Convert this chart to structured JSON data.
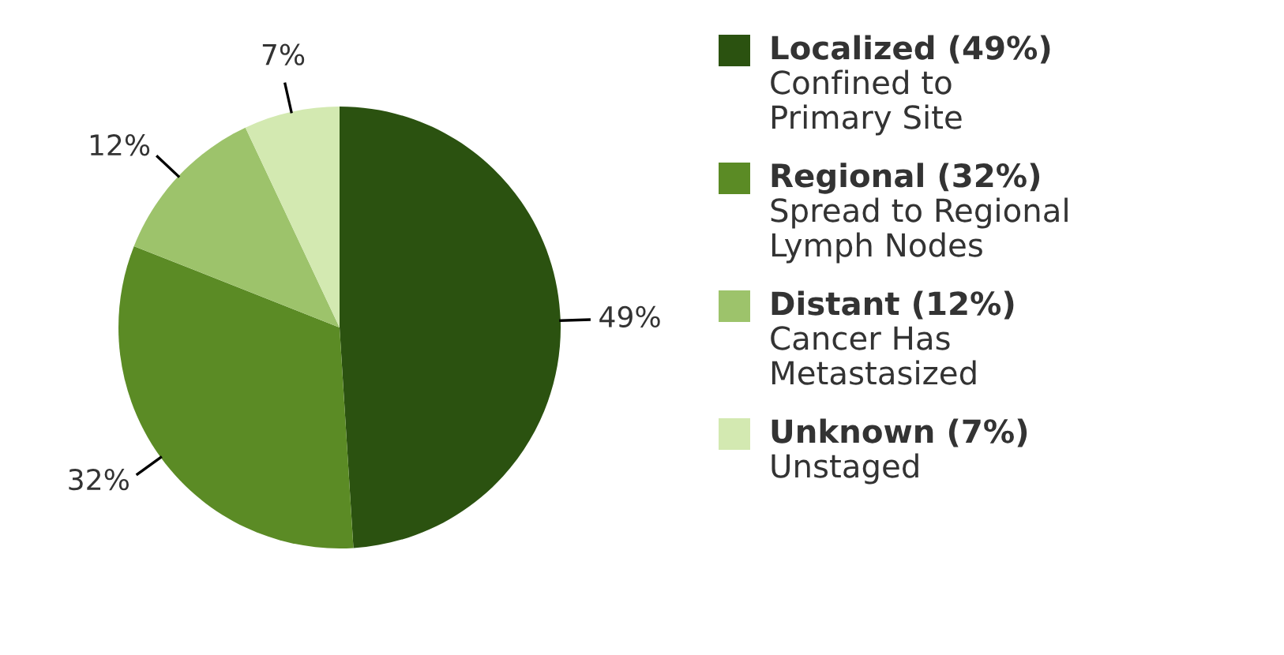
{
  "chart_data": {
    "type": "pie",
    "categories": [
      "Localized (49%)\nConfined to\nPrimary Site",
      "Regional (32%)\nSpread to Regional\nLymph Nodes",
      "Distant (12%)\nCancer Has\nMetastasized",
      "Unknown (7%)\nUnstaged"
    ],
    "values": [
      49,
      32,
      12,
      7
    ],
    "colors": [
      "#2b5210",
      "#5b8b25",
      "#9dc36b",
      "#d3e9b1"
    ],
    "value_labels": [
      "49%",
      "32%",
      "12%",
      "7%"
    ],
    "legend": "right"
  }
}
